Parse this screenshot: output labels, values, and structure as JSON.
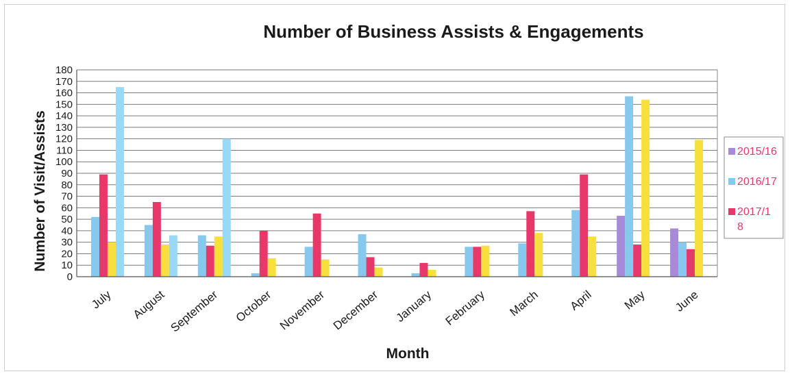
{
  "chart_data": {
    "type": "bar",
    "title": "Number of Business Assists & Engagements",
    "xlabel": "Month",
    "ylabel": "Number of Visit/Assists",
    "ylim": [
      0,
      180
    ],
    "ytick_step": 10,
    "grid": true,
    "legend_position": "right",
    "categories": [
      "July",
      "August",
      "September",
      "October",
      "November",
      "December",
      "January",
      "February",
      "March",
      "April",
      "May",
      "June"
    ],
    "series": [
      {
        "name": "2015/16",
        "color": "#a78bd8",
        "values": [
          0,
          0,
          0,
          0,
          0,
          0,
          0,
          0,
          0,
          0,
          53,
          42
        ]
      },
      {
        "name": "2016/17",
        "color": "#86c8ee",
        "values": [
          52,
          45,
          36,
          3,
          26,
          37,
          3,
          26,
          29,
          58,
          157,
          30
        ]
      },
      {
        "name": "2017/18",
        "color": "#e8386a",
        "values": [
          89,
          65,
          27,
          40,
          55,
          17,
          12,
          26,
          57,
          89,
          28,
          24
        ]
      },
      {
        "name": "",
        "color": "#f7e03c",
        "values": [
          30,
          28,
          35,
          16,
          15,
          8,
          6,
          27,
          38,
          35,
          154,
          119
        ]
      },
      {
        "name": "",
        "color": "#9ad8f7",
        "values": [
          165,
          36,
          120,
          0,
          0,
          0,
          0,
          0,
          0,
          0,
          0,
          0
        ]
      }
    ],
    "legend_entries": [
      {
        "label": "2015/16",
        "color": "#a78bd8",
        "text_color": "#e8386a"
      },
      {
        "label": "2016/17",
        "color": "#86c8ee",
        "text_color": "#e8386a"
      },
      {
        "label": "2017/1\n8",
        "color": "#e8386a",
        "text_color": "#e8386a"
      }
    ]
  }
}
